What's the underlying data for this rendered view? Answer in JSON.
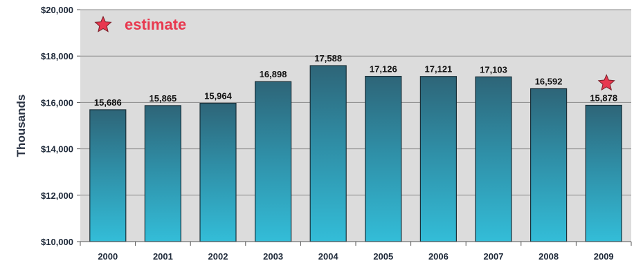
{
  "colors": {
    "bar_top": "#2e6578",
    "bar_bottom": "#33bdd8",
    "bar_stroke": "#1a2f38",
    "plot_bg": "#dcdcdc",
    "grid": "#8a8a8a",
    "estimate": "#e8384f"
  },
  "legend": {
    "icon": "star-icon",
    "label": "estimate"
  },
  "chart_data": {
    "type": "bar",
    "categories": [
      "2000",
      "2001",
      "2002",
      "2003",
      "2004",
      "2005",
      "2006",
      "2007",
      "2008",
      "2009"
    ],
    "values": [
      15686,
      15865,
      15964,
      16898,
      17588,
      17126,
      17121,
      17103,
      16592,
      15878
    ],
    "value_labels": [
      "15,686",
      "15,865",
      "15,964",
      "16,898",
      "17,588",
      "17,126",
      "17,121",
      "17,103",
      "16,592",
      "15,878"
    ],
    "estimate_categories": [
      "2009"
    ],
    "title": "",
    "xlabel": "",
    "ylabel": "Thousands",
    "ylim": [
      10000,
      20000
    ],
    "yticks": [
      10000,
      12000,
      14000,
      16000,
      18000,
      20000
    ],
    "ytick_labels": [
      "$10,000",
      "$12,000",
      "$14,000",
      "$16,000",
      "$18,000",
      "$20,000"
    ],
    "grid": true,
    "legend_position": "top-left"
  }
}
